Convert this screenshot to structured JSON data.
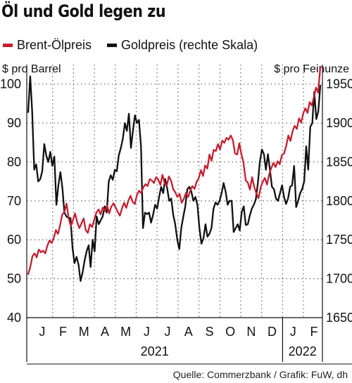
{
  "title": "Öl und Gold legen zu",
  "source": "Quelle: Commerzbank  / Grafik: FuW, dh",
  "colors": {
    "oil": "#c51f31",
    "gold": "#111111"
  },
  "chart_data": {
    "type": "line",
    "left_axis": {
      "title": "$ pro Barrel",
      "min": 40,
      "max": 105,
      "ticks": [
        40,
        50,
        60,
        70,
        80,
        90,
        100
      ]
    },
    "right_axis": {
      "title": "$ pro Feinunze",
      "min": 1650,
      "max": 1975,
      "ticks": [
        1650,
        1700,
        1750,
        1800,
        1850,
        1900,
        1950
      ]
    },
    "month_labels": [
      "J",
      "F",
      "M",
      "A",
      "M",
      "J",
      "J",
      "A",
      "S",
      "O",
      "N",
      "D",
      "J",
      "F"
    ],
    "year_labels": [
      "2021",
      "2022"
    ],
    "grid": true,
    "legend_position": "top",
    "series": [
      {
        "name": "Brent-Ölpreis",
        "axis": "left",
        "color": "#c51f31",
        "values": [
          51.2,
          53,
          55.8,
          56.5,
          55.5,
          57.5,
          56.8,
          57.2,
          56.5,
          58.5,
          59.8,
          59.2,
          60.5,
          62.5,
          61.5,
          63.8,
          66.5,
          67.2,
          69.3,
          65.5,
          63.5,
          65,
          66.8,
          64.5,
          63,
          64.2,
          65.5,
          62.5,
          61.8,
          64,
          63.3,
          65.2,
          67,
          67.8,
          66.5,
          68.3,
          67.4,
          68.8,
          66.8,
          68.5,
          69.4,
          68.3,
          67.2,
          66.2,
          68.1,
          69.5,
          68.2,
          70.1,
          71.3,
          69.8,
          69.2,
          71.5,
          72.6,
          72,
          73.5,
          74.3,
          73.8,
          75.6,
          75.2,
          74.6,
          76.1,
          75.5,
          74.1,
          76.7,
          74.5,
          73.9,
          76.3,
          75.2,
          73,
          72.2,
          71,
          71.8,
          69.5,
          70.5,
          72.1,
          71,
          72.6,
          73.8,
          73.1,
          74.9,
          75.8,
          77.9,
          76.4,
          79.1,
          78.3,
          81.9,
          80.3,
          83.1,
          82.8,
          84.6,
          83.2,
          85.5,
          84.9,
          86.2,
          85.7,
          86.8,
          85.6,
          82.2,
          81.9,
          84.8,
          82,
          79.8,
          75.3,
          74.7,
          72.9,
          76.1,
          73.6,
          72,
          70.7,
          73.4,
          74.9,
          75.9,
          74.2,
          76.8,
          78.4,
          79.8,
          78.7,
          80.2,
          79.4,
          81.8,
          82.2,
          84.1,
          86.8,
          85.4,
          87.9,
          89.3,
          88.5,
          91.2,
          90.1,
          92.5,
          93.8,
          92.6,
          95.4,
          94.5,
          96.7,
          99.1,
          97.8,
          104.5
        ]
      },
      {
        "name": "Goldpreis (rechte Skala)",
        "axis": "right",
        "color": "#111111",
        "values": [
          1914,
          1960,
          1915,
          1840,
          1847,
          1825,
          1828,
          1838,
          1873,
          1858,
          1850,
          1863,
          1845,
          1857,
          1795,
          1820,
          1837,
          1816,
          1785,
          1780,
          1778,
          1778,
          1740,
          1720,
          1728,
          1718,
          1697,
          1708,
          1723,
          1735,
          1743,
          1715,
          1750,
          1735,
          1780,
          1770,
          1775,
          1780,
          1793,
          1785,
          1825,
          1833,
          1827,
          1840,
          1838,
          1859,
          1868,
          1880,
          1900,
          1890,
          1912,
          1868,
          1890,
          1910,
          1900,
          1904,
          1870,
          1765,
          1785,
          1783,
          1785,
          1772,
          1782,
          1795,
          1790,
          1805,
          1818,
          1810,
          1828,
          1816,
          1800,
          1803,
          1782,
          1770,
          1750,
          1738,
          1765,
          1780,
          1793,
          1815,
          1818,
          1812,
          1800,
          1805,
          1795,
          1765,
          1745,
          1752,
          1770,
          1754,
          1758,
          1765,
          1790,
          1798,
          1795,
          1800,
          1810,
          1823,
          1812,
          1795,
          1800,
          1800,
          1760,
          1765,
          1770,
          1762,
          1786,
          1793,
          1769,
          1770,
          1781,
          1790,
          1795,
          1802,
          1823,
          1850,
          1866,
          1860,
          1840,
          1860,
          1840,
          1818,
          1815,
          1803,
          1800,
          1810,
          1820,
          1805,
          1796,
          1803,
          1818,
          1820,
          1845,
          1792,
          1800,
          1810,
          1815,
          1825,
          1870,
          1840,
          1895,
          1900,
          1940,
          1905,
          1915,
          1948
        ]
      }
    ]
  }
}
